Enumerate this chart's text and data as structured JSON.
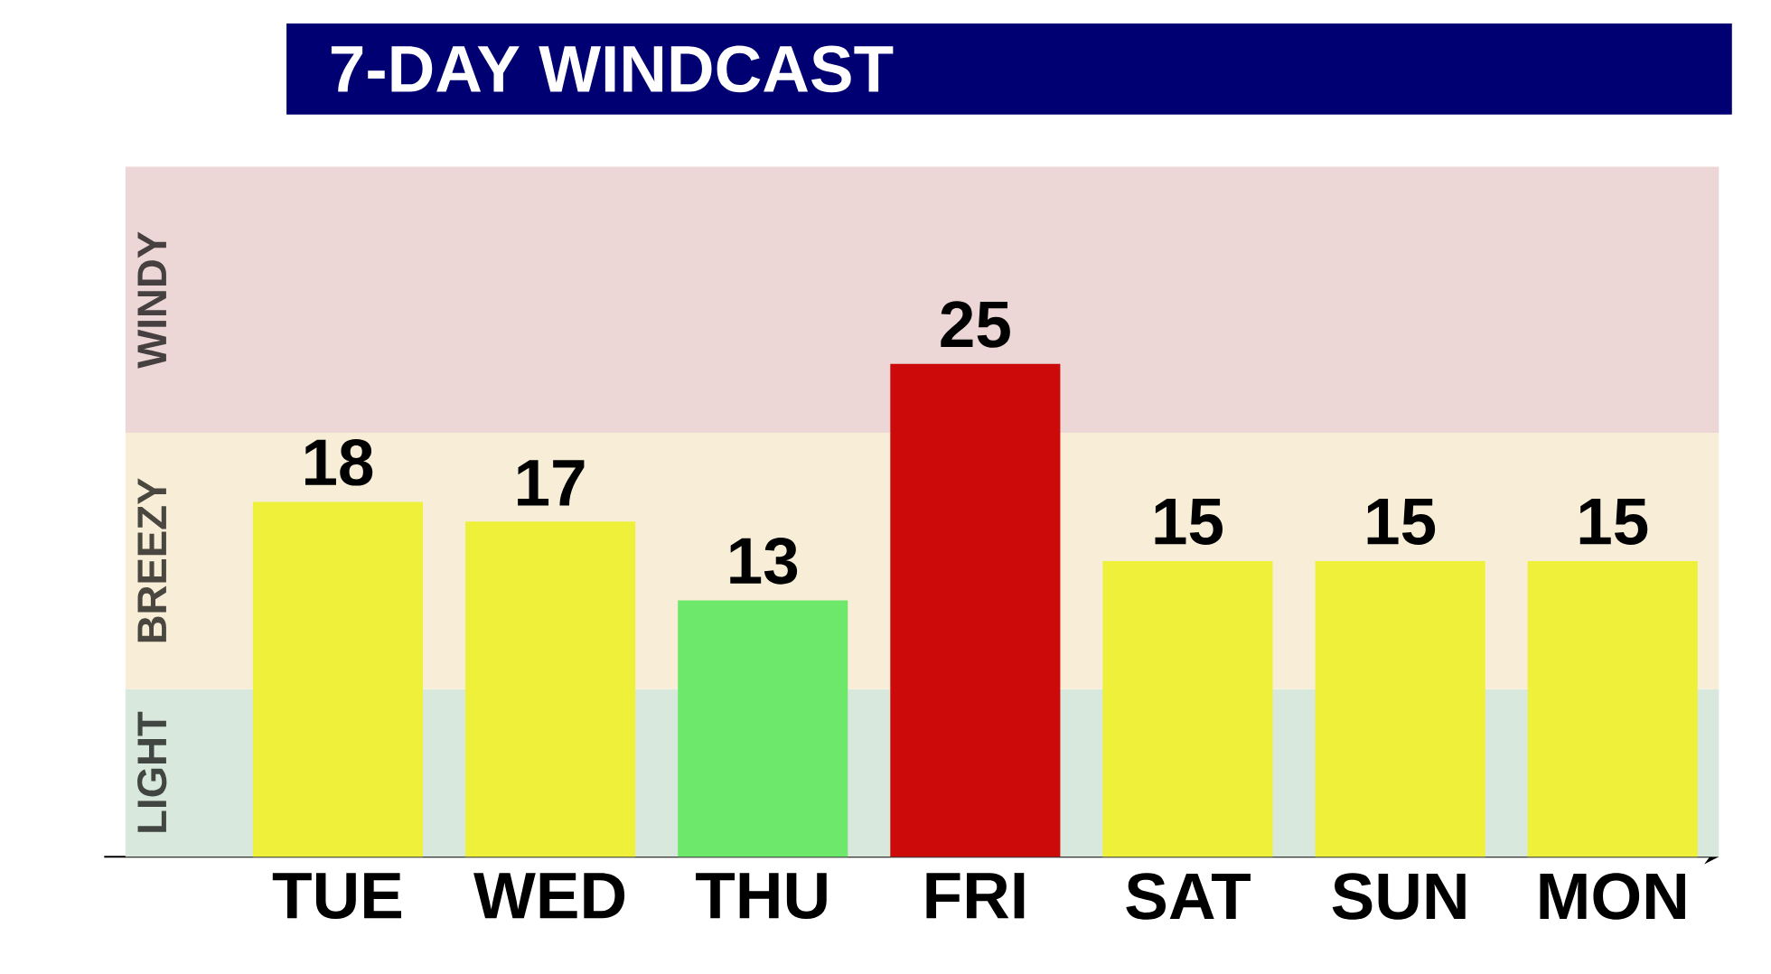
{
  "chart_data": {
    "type": "bar",
    "title": "7-DAY WINDCAST",
    "categories": [
      "TUE",
      "WED",
      "THU",
      "FRI",
      "SAT",
      "SUN",
      "MON"
    ],
    "values": [
      18,
      17,
      13,
      25,
      15,
      15,
      15
    ],
    "colors": [
      "#eef03a",
      "#eef03a",
      "#6ee86a",
      "#cc0a0a",
      "#eef03a",
      "#eef03a",
      "#eef03a"
    ],
    "data_labels": true,
    "bands": [
      {
        "axis": "y",
        "from": 0,
        "to": 8.5,
        "label": "LIGHT",
        "color": "#d9e8dc"
      },
      {
        "axis": "y",
        "from": 8.5,
        "to": 21.5,
        "label": "BREEZY",
        "color": "#f8eed7"
      },
      {
        "axis": "y",
        "from": 21.5,
        "to": 35,
        "label": "WINDY",
        "color": "#edd6d6"
      }
    ]
  }
}
